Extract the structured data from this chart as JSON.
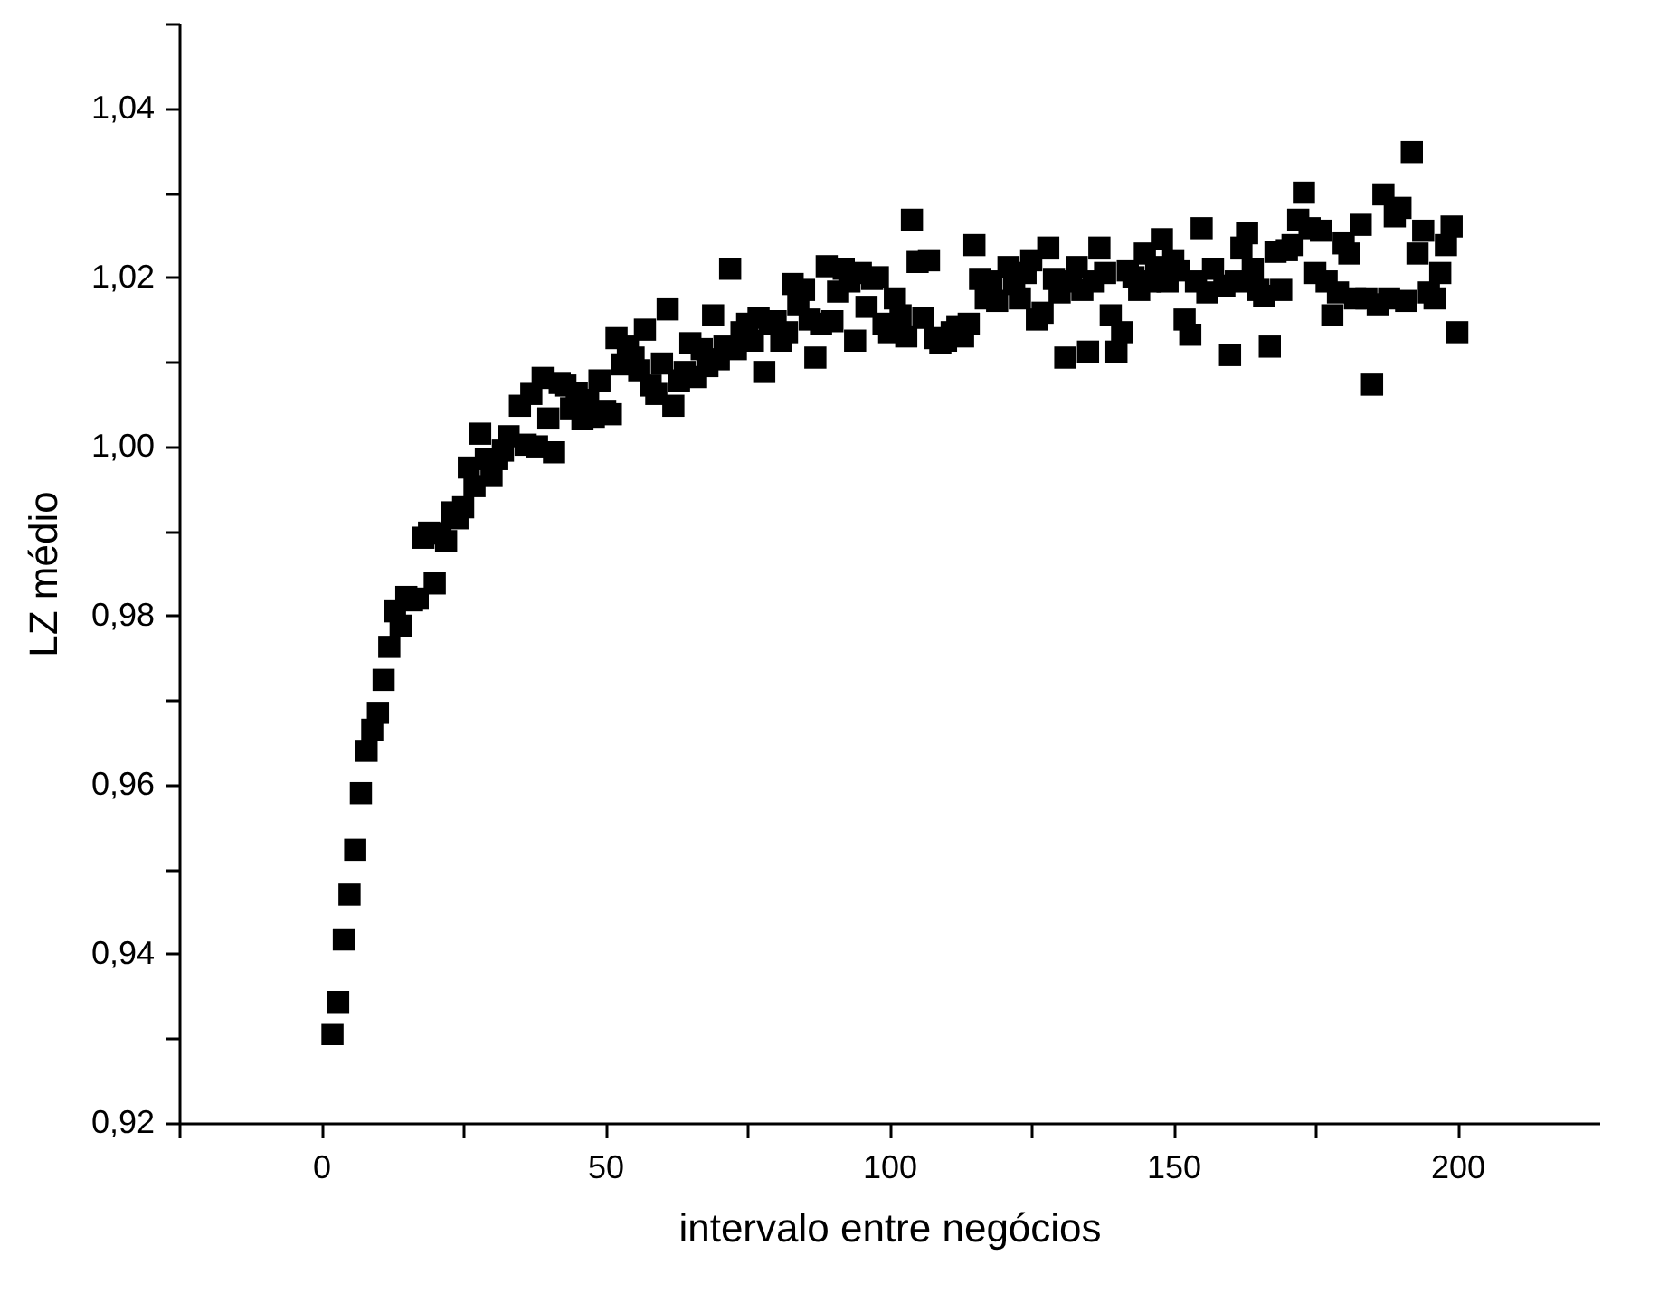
{
  "chart_data": {
    "type": "scatter",
    "xlabel": "intervalo entre negócios",
    "ylabel": "LZ médio",
    "marker": "square",
    "grid": false,
    "legend": false,
    "xlim": [
      -25,
      225
    ],
    "xticks": [
      {
        "value": -25,
        "label": null
      },
      {
        "value": 0,
        "label": "0"
      },
      {
        "value": 25,
        "label": null
      },
      {
        "value": 50,
        "label": "50"
      },
      {
        "value": 75,
        "label": null
      },
      {
        "value": 100,
        "label": "100"
      },
      {
        "value": 125,
        "label": null
      },
      {
        "value": 150,
        "label": "150"
      },
      {
        "value": 175,
        "label": null
      },
      {
        "value": 200,
        "label": "200"
      }
    ],
    "ylim": [
      0.92,
      1.05
    ],
    "yticks": [
      {
        "value": 0.92,
        "label": "0,92"
      },
      {
        "value": 0.93,
        "label": null
      },
      {
        "value": 0.94,
        "label": "0,94"
      },
      {
        "value": 0.95,
        "label": null
      },
      {
        "value": 0.96,
        "label": "0,96"
      },
      {
        "value": 0.97,
        "label": null
      },
      {
        "value": 0.98,
        "label": "0,98"
      },
      {
        "value": 0.99,
        "label": null
      },
      {
        "value": 1.0,
        "label": "1,00"
      },
      {
        "value": 1.01,
        "label": null
      },
      {
        "value": 1.02,
        "label": "1,02"
      },
      {
        "value": 1.03,
        "label": null
      },
      {
        "value": 1.04,
        "label": "1,04"
      },
      {
        "value": 1.05,
        "label": null
      }
    ],
    "series": [
      {
        "color": "#000000",
        "x": [
          2,
          3,
          4,
          5,
          6,
          7,
          8,
          9,
          10,
          11,
          12,
          13,
          14,
          15,
          16,
          17,
          18,
          19,
          20,
          21,
          22,
          23,
          24,
          25,
          26,
          27,
          28,
          29,
          30,
          31,
          32,
          33,
          35,
          36,
          37,
          38,
          39,
          40,
          41,
          42,
          43,
          44,
          45,
          46,
          47,
          48,
          49,
          50,
          51,
          52,
          53,
          54,
          55,
          56,
          57,
          58,
          59,
          60,
          61,
          62,
          63,
          64,
          65,
          66,
          67,
          68,
          69,
          70,
          71,
          72,
          73,
          74,
          75,
          76,
          77,
          78,
          79,
          80,
          81,
          82,
          83,
          84,
          85,
          86,
          87,
          88,
          89,
          90,
          91,
          92,
          93,
          94,
          95,
          96,
          97,
          98,
          99,
          100,
          101,
          102,
          103,
          104,
          105,
          106,
          107,
          108,
          109,
          110,
          111,
          112,
          113,
          114,
          115,
          116,
          117,
          118,
          119,
          121,
          122,
          123,
          124,
          125,
          126,
          127,
          128,
          129,
          130,
          131,
          132,
          133,
          134,
          135,
          136,
          137,
          138,
          139,
          140,
          141,
          142,
          143,
          144,
          145,
          146,
          147,
          148,
          149,
          150,
          151,
          152,
          153,
          154,
          155,
          156,
          157,
          159,
          160,
          161,
          162,
          163,
          164,
          165,
          166,
          167,
          168,
          169,
          170,
          171,
          172,
          173,
          174,
          175,
          176,
          177,
          178,
          179,
          180,
          181,
          182,
          183,
          184,
          185,
          186,
          187,
          188,
          189,
          190,
          191,
          192,
          193,
          194,
          195,
          196,
          197,
          198,
          199,
          200
        ],
        "values": [
          0.9305,
          0.9343,
          0.9417,
          0.947,
          0.9523,
          0.959,
          0.964,
          0.9665,
          0.9685,
          0.9724,
          0.9763,
          0.9805,
          0.9788,
          0.9822,
          0.9818,
          0.982,
          0.9892,
          0.9898,
          0.9838,
          0.9897,
          0.9888,
          0.9922,
          0.9915,
          0.9928,
          0.9975,
          0.9953,
          1.0015,
          0.9985,
          0.9965,
          0.9985,
          0.9995,
          1.0012,
          1.0048,
          1.0002,
          1.0062,
          1.0,
          1.0081,
          1.0033,
          0.9993,
          1.0075,
          1.0072,
          1.0045,
          1.0063,
          1.0032,
          1.0055,
          1.0035,
          1.0078,
          1.0042,
          1.0038,
          1.0128,
          1.0097,
          1.0118,
          1.0105,
          1.009,
          1.0138,
          1.0072,
          1.0062,
          1.0098,
          1.0162,
          1.0048,
          1.0078,
          1.0088,
          1.0122,
          1.0082,
          1.0115,
          1.0095,
          1.0155,
          1.0103,
          1.0118,
          1.021,
          1.0115,
          1.0135,
          1.0145,
          1.0125,
          1.0152,
          1.0088,
          1.0145,
          1.0148,
          1.0125,
          1.0135,
          1.0192,
          1.0168,
          1.0185,
          1.015,
          1.0105,
          1.0145,
          1.0213,
          1.0148,
          1.0183,
          1.021,
          1.0195,
          1.0125,
          1.0205,
          1.0165,
          1.0198,
          1.02,
          1.0145,
          1.0135,
          1.0175,
          1.0155,
          1.013,
          1.0268,
          1.0218,
          1.0152,
          1.022,
          1.0128,
          1.0122,
          1.0125,
          1.0135,
          1.0142,
          1.013,
          1.0145,
          1.0238,
          1.0198,
          1.0175,
          1.0195,
          1.0172,
          1.0212,
          1.0192,
          1.0175,
          1.0205,
          1.022,
          1.015,
          1.0158,
          1.0235,
          1.0198,
          1.0182,
          1.0105,
          1.0195,
          1.0212,
          1.0185,
          1.0112,
          1.0195,
          1.0235,
          1.0205,
          1.0155,
          1.0112,
          1.0135,
          1.0208,
          1.02,
          1.0185,
          1.0228,
          1.0195,
          1.0212,
          1.0245,
          1.0195,
          1.022,
          1.0208,
          1.015,
          1.0132,
          1.0195,
          1.0258,
          1.0182,
          1.021,
          1.019,
          1.0108,
          1.0195,
          1.0235,
          1.0252,
          1.021,
          1.0185,
          1.0178,
          1.0118,
          1.023,
          1.0185,
          1.0232,
          1.0238,
          1.0268,
          1.03,
          1.0258,
          1.0205,
          1.0255,
          1.0195,
          1.0155,
          1.0182,
          1.024,
          1.0228,
          1.0175,
          1.0262,
          1.0175,
          1.0073,
          1.0168,
          1.0298,
          1.0175,
          1.0272,
          1.0282,
          1.0172,
          1.0348,
          1.0228,
          1.0255,
          1.0182,
          1.0175,
          1.0205,
          1.0238,
          1.026,
          1.0135
        ]
      }
    ]
  }
}
